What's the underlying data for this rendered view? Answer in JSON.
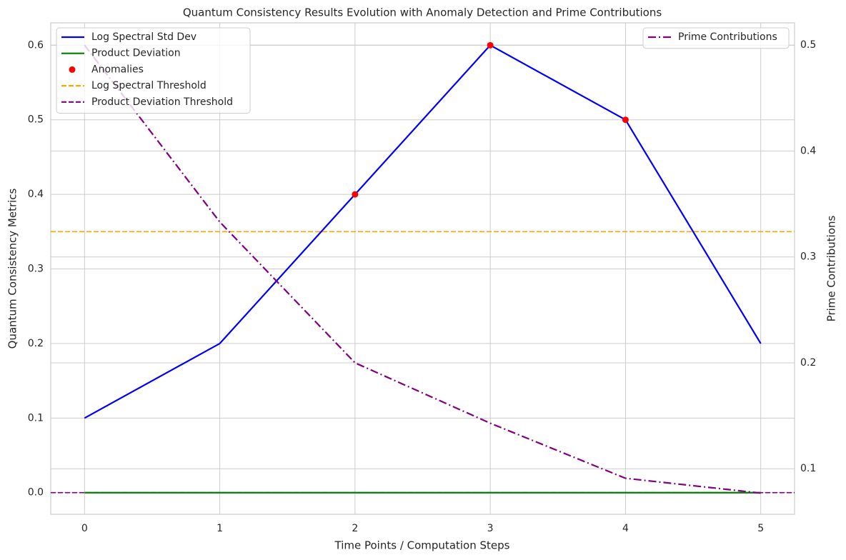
{
  "chart_data": {
    "type": "line",
    "title": "Quantum Consistency Results Evolution with Anomaly Detection and Prime Contributions",
    "xlabel": "Time Points / Computation Steps",
    "ylabel": "Quantum Consistency Metrics",
    "y2label": "Prime Contributions",
    "x": [
      0,
      1,
      2,
      3,
      4,
      5
    ],
    "xlim": [
      -0.25,
      5.25
    ],
    "xticks": [
      0,
      1,
      2,
      3,
      4,
      5
    ],
    "ylim": [
      -0.029,
      0.63
    ],
    "yticks": [
      {
        "value": 0,
        "label": "0.0"
      },
      0.1,
      0.2,
      0.3,
      0.4,
      0.5,
      0.6
    ],
    "y2lim": [
      0.057,
      0.521
    ],
    "y2ticks": [
      0.1,
      0.2,
      0.3,
      0.4,
      0.5
    ],
    "grid": true,
    "series": [
      {
        "name": "Log Spectral Std Dev",
        "color": "#0000ff",
        "linestyle": "solid",
        "values": [
          0.1,
          0.2,
          0.4,
          0.6,
          0.5,
          0.2
        ]
      },
      {
        "name": "Product Deviation",
        "color": "#008000",
        "linestyle": "solid",
        "values": [
          0,
          0,
          0,
          0,
          0,
          0
        ]
      },
      {
        "name": "Prime Contributions",
        "color": "#800080",
        "linestyle": "dashdot",
        "axis": "y2",
        "values": [
          0.5,
          0.333,
          0.2,
          0.143,
          0.091,
          0.077
        ]
      }
    ],
    "scatter": {
      "name": "Anomalies",
      "color": "#ff0000",
      "x": [
        2,
        3,
        4
      ],
      "values": [
        0.4,
        0.6,
        0.5
      ]
    },
    "hlines": [
      {
        "name": "Log Spectral Threshold",
        "color": "#ffa500",
        "linestyle": "dashed",
        "value": 0.35
      },
      {
        "name": "Product Deviation Threshold",
        "color": "#800080",
        "linestyle": "dashed",
        "value": 0
      }
    ],
    "legend": "upper left",
    "legend2": "upper right"
  }
}
